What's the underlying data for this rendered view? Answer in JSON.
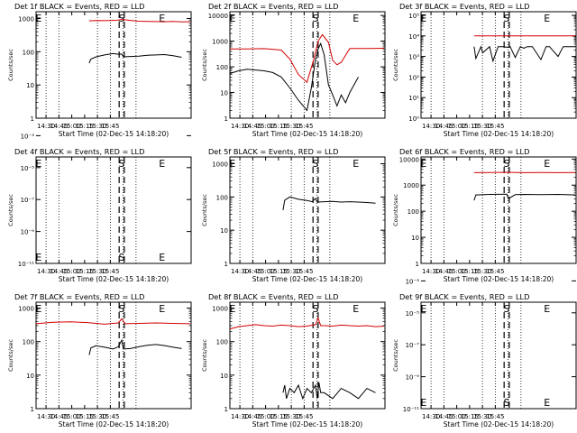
{
  "colors": {
    "events": "#000000",
    "lld": "#d40000",
    "frame": "#000000"
  },
  "chart_data": [
    {
      "type": "line",
      "id": "det1",
      "title": "Det 1f BLACK = Events, RED = LLD",
      "xlabel": "Start Time (02-Dec-15 14:18:20)",
      "ylabel": "Counts/sec",
      "x_ticks": [
        "14:30",
        "14:45",
        "15:00",
        "15:15",
        "15:30",
        "15:45"
      ],
      "y_ticks": [
        "1",
        "10",
        "100",
        "1000"
      ],
      "ylim": [
        1,
        1600
      ],
      "log_y": true,
      "markers": [
        "E",
        "S",
        "E"
      ],
      "series": [
        {
          "color": "red",
          "t": [
            62,
            70,
            80,
            95,
            100,
            110,
            120,
            130,
            140,
            150,
            160,
            170,
            180
          ],
          "v": [
            850,
            870,
            860,
            890,
            940,
            880,
            830,
            820,
            810,
            800,
            820,
            790,
            800
          ]
        },
        {
          "color": "black",
          "t": [
            62,
            64,
            70,
            80,
            90,
            96,
            100,
            102,
            110,
            120,
            130,
            140,
            150,
            160,
            170
          ],
          "v": [
            45,
            60,
            70,
            80,
            88,
            84,
            85,
            70,
            72,
            74,
            78,
            80,
            82,
            76,
            68
          ]
        }
      ]
    },
    {
      "type": "line",
      "id": "det2",
      "title": "Det 2f BLACK = Events, RED = LLD",
      "xlabel": "Start Time (02-Dec-15 14:18:20)",
      "ylabel": "Counts/sec",
      "x_ticks": [
        "14:30",
        "14:45",
        "15:00",
        "15:15",
        "15:30",
        "15:45"
      ],
      "y_ticks": [
        "1",
        "10",
        "100",
        "1000",
        "10000"
      ],
      "ylim": [
        1,
        14000
      ],
      "log_y": true,
      "markers": [
        "E",
        "S",
        "E"
      ],
      "series": [
        {
          "color": "red",
          "t": [
            0,
            20,
            40,
            60,
            70,
            80,
            90,
            98,
            103,
            108,
            115,
            120,
            125,
            130,
            140,
            160,
            180
          ],
          "v": [
            500,
            500,
            510,
            450,
            200,
            50,
            25,
            200,
            1000,
            1800,
            900,
            180,
            120,
            150,
            520,
            520,
            530
          ]
        },
        {
          "color": "black",
          "t": [
            0,
            10,
            20,
            30,
            40,
            50,
            60,
            70,
            80,
            90,
            95,
            100,
            103,
            106,
            110,
            115,
            120,
            125,
            130,
            135,
            140,
            150
          ],
          "v": [
            55,
            70,
            80,
            75,
            70,
            60,
            40,
            15,
            5,
            2,
            15,
            200,
            500,
            800,
            300,
            20,
            8,
            3,
            8,
            4,
            10,
            40
          ]
        }
      ]
    },
    {
      "type": "line",
      "id": "det3",
      "title": "Det 3f BLACK = Events, RED = LLD",
      "xlabel": "Start Time (02-Dec-15 14:18:20)",
      "ylabel": "Counts/sec",
      "x_ticks": [
        "14:30",
        "14:45",
        "15:00",
        "15:15",
        "15:30",
        "15:45"
      ],
      "y_ticks": [
        "10⁰",
        "10¹",
        "10²",
        "10³",
        "10⁴",
        "10⁵"
      ],
      "ylim": [
        1,
        150000
      ],
      "log_y": true,
      "markers": [
        "E",
        "S",
        "E"
      ],
      "series": [
        {
          "color": "red",
          "t": [
            62,
            180
          ],
          "v": [
            10000,
            10000
          ]
        },
        {
          "color": "black",
          "t": [
            62,
            64,
            70,
            72,
            80,
            84,
            90,
            96,
            100,
            104,
            110,
            116,
            120,
            124,
            130,
            140,
            146,
            150,
            160,
            166,
            170,
            180
          ],
          "v": [
            3000,
            800,
            3000,
            1500,
            3000,
            600,
            3000,
            3000,
            2800,
            3000,
            900,
            3000,
            2500,
            3000,
            3000,
            700,
            3000,
            3000,
            1000,
            3000,
            3000,
            3000
          ]
        }
      ]
    },
    {
      "type": "line",
      "id": "det4",
      "title": "Det 4f BLACK = Events, RED = LLD",
      "xlabel": "Start Time (02-Dec-15 14:18:20)",
      "ylabel": "Counts/sec",
      "x_ticks": [
        "14:30",
        "14:45",
        "15:00",
        "15:15",
        "15:30",
        "15:45"
      ],
      "y_ticks": [
        "10⁻¹¹",
        "10⁻⁹",
        "10⁻⁷",
        "10⁻⁵",
        "10⁻³"
      ],
      "ylim": [
        1e-12,
        0.01
      ],
      "log_y": true,
      "markers": [
        "E",
        "S",
        "E"
      ],
      "series": []
    },
    {
      "type": "line",
      "id": "det5",
      "title": "Det 5f BLACK = Events, RED = LLD",
      "xlabel": "Start Time (02-Dec-15 14:18:20)",
      "ylabel": "Counts/sec",
      "x_ticks": [
        "14:30",
        "14:45",
        "15:00",
        "15:15",
        "15:30",
        "15:45"
      ],
      "y_ticks": [
        "1",
        "10",
        "100",
        "1000"
      ],
      "ylim": [
        1,
        1600
      ],
      "log_y": true,
      "markers": [
        "E",
        "S",
        "E"
      ],
      "series": [
        {
          "color": "black",
          "t": [
            62,
            64,
            70,
            80,
            90,
            96,
            100,
            102,
            110,
            120,
            130,
            140,
            150,
            160,
            170
          ],
          "v": [
            40,
            80,
            100,
            85,
            78,
            72,
            90,
            70,
            72,
            74,
            70,
            72,
            70,
            68,
            65
          ]
        }
      ]
    },
    {
      "type": "line",
      "id": "det6",
      "title": "Det 6f BLACK = Events, RED = LLD",
      "xlabel": "Start Time (02-Dec-15 14:18:20)",
      "ylabel": "Counts/sec",
      "x_ticks": [
        "14:30",
        "14:45",
        "15:00",
        "15:15",
        "15:30",
        "15:45"
      ],
      "y_ticks": [
        "1",
        "10",
        "100",
        "1000",
        "10000"
      ],
      "ylim": [
        1,
        12000
      ],
      "log_y": true,
      "markers": [
        "E",
        "S",
        "E"
      ],
      "series": [
        {
          "color": "red",
          "t": [
            62,
            80,
            100,
            120,
            140,
            160,
            180
          ],
          "v": [
            3000,
            3050,
            3100,
            3000,
            3050,
            3000,
            3050
          ]
        },
        {
          "color": "black",
          "t": [
            62,
            64,
            80,
            100,
            102,
            110,
            120,
            140,
            160,
            180
          ],
          "v": [
            260,
            420,
            440,
            450,
            300,
            430,
            440,
            430,
            440,
            420
          ]
        }
      ]
    },
    {
      "type": "line",
      "id": "det7",
      "title": "Det 7f BLACK = Events, RED = LLD",
      "xlabel": "Start Time (02-Dec-15 14:18:20)",
      "ylabel": "Counts/sec",
      "x_ticks": [
        "14:30",
        "14:45",
        "15:00",
        "15:15",
        "15:30",
        "15:45"
      ],
      "y_ticks": [
        "1",
        "10",
        "100",
        "1000"
      ],
      "ylim": [
        1,
        1500
      ],
      "log_y": true,
      "markers": [
        "E",
        "S",
        "E"
      ],
      "series": [
        {
          "color": "red",
          "t": [
            0,
            20,
            40,
            60,
            80,
            96,
            100,
            104,
            120,
            140,
            160,
            180
          ],
          "v": [
            340,
            380,
            390,
            370,
            330,
            360,
            480,
            340,
            350,
            360,
            350,
            340
          ]
        },
        {
          "color": "black",
          "t": [
            62,
            64,
            70,
            80,
            90,
            96,
            100,
            102,
            110,
            120,
            130,
            140,
            150,
            160,
            170
          ],
          "v": [
            40,
            65,
            75,
            68,
            60,
            70,
            110,
            60,
            62,
            70,
            78,
            82,
            76,
            68,
            62
          ]
        }
      ]
    },
    {
      "type": "line",
      "id": "det8",
      "title": "Det 8f BLACK = Events, RED = LLD",
      "xlabel": "Start Time (02-Dec-15 14:18:20)",
      "ylabel": "Counts/sec",
      "x_ticks": [
        "14:30",
        "14:45",
        "15:00",
        "15:15",
        "15:30",
        "15:45"
      ],
      "y_ticks": [
        "1",
        "10",
        "100",
        "1000"
      ],
      "ylim": [
        1,
        1500
      ],
      "log_y": true,
      "markers": [
        "E",
        "S",
        "E"
      ],
      "series": [
        {
          "color": "red",
          "t": [
            0,
            10,
            20,
            30,
            40,
            50,
            60,
            70,
            80,
            90,
            100,
            103,
            106,
            110,
            120,
            130,
            140,
            150,
            160,
            170,
            180
          ],
          "v": [
            240,
            280,
            300,
            320,
            300,
            290,
            310,
            300,
            280,
            290,
            320,
            500,
            300,
            300,
            290,
            310,
            300,
            290,
            300,
            280,
            290
          ]
        },
        {
          "color": "black",
          "t": [
            62,
            64,
            66,
            70,
            75,
            80,
            85,
            90,
            95,
            100,
            102,
            104,
            106,
            110,
            120,
            130,
            140,
            150,
            160,
            170
          ],
          "v": [
            3,
            5,
            2,
            4,
            3,
            5,
            2,
            4,
            3,
            5,
            2,
            6,
            3,
            3,
            2,
            4,
            3,
            2,
            4,
            3
          ]
        }
      ]
    },
    {
      "type": "line",
      "id": "det9",
      "title": "Det 9f BLACK = Events, RED = LLD",
      "xlabel": "Start Time (02-Dec-15 14:18:20)",
      "ylabel": "Counts/sec",
      "x_ticks": [
        "14:30",
        "14:45",
        "15:00",
        "15:15",
        "15:30",
        "15:45"
      ],
      "y_ticks": [
        "10⁻¹¹",
        "10⁻⁹",
        "10⁻⁷",
        "10⁻⁵",
        "10⁻³"
      ],
      "ylim": [
        1e-12,
        0.01
      ],
      "log_y": true,
      "markers": [
        "E",
        "S",
        "E"
      ],
      "series": []
    }
  ]
}
